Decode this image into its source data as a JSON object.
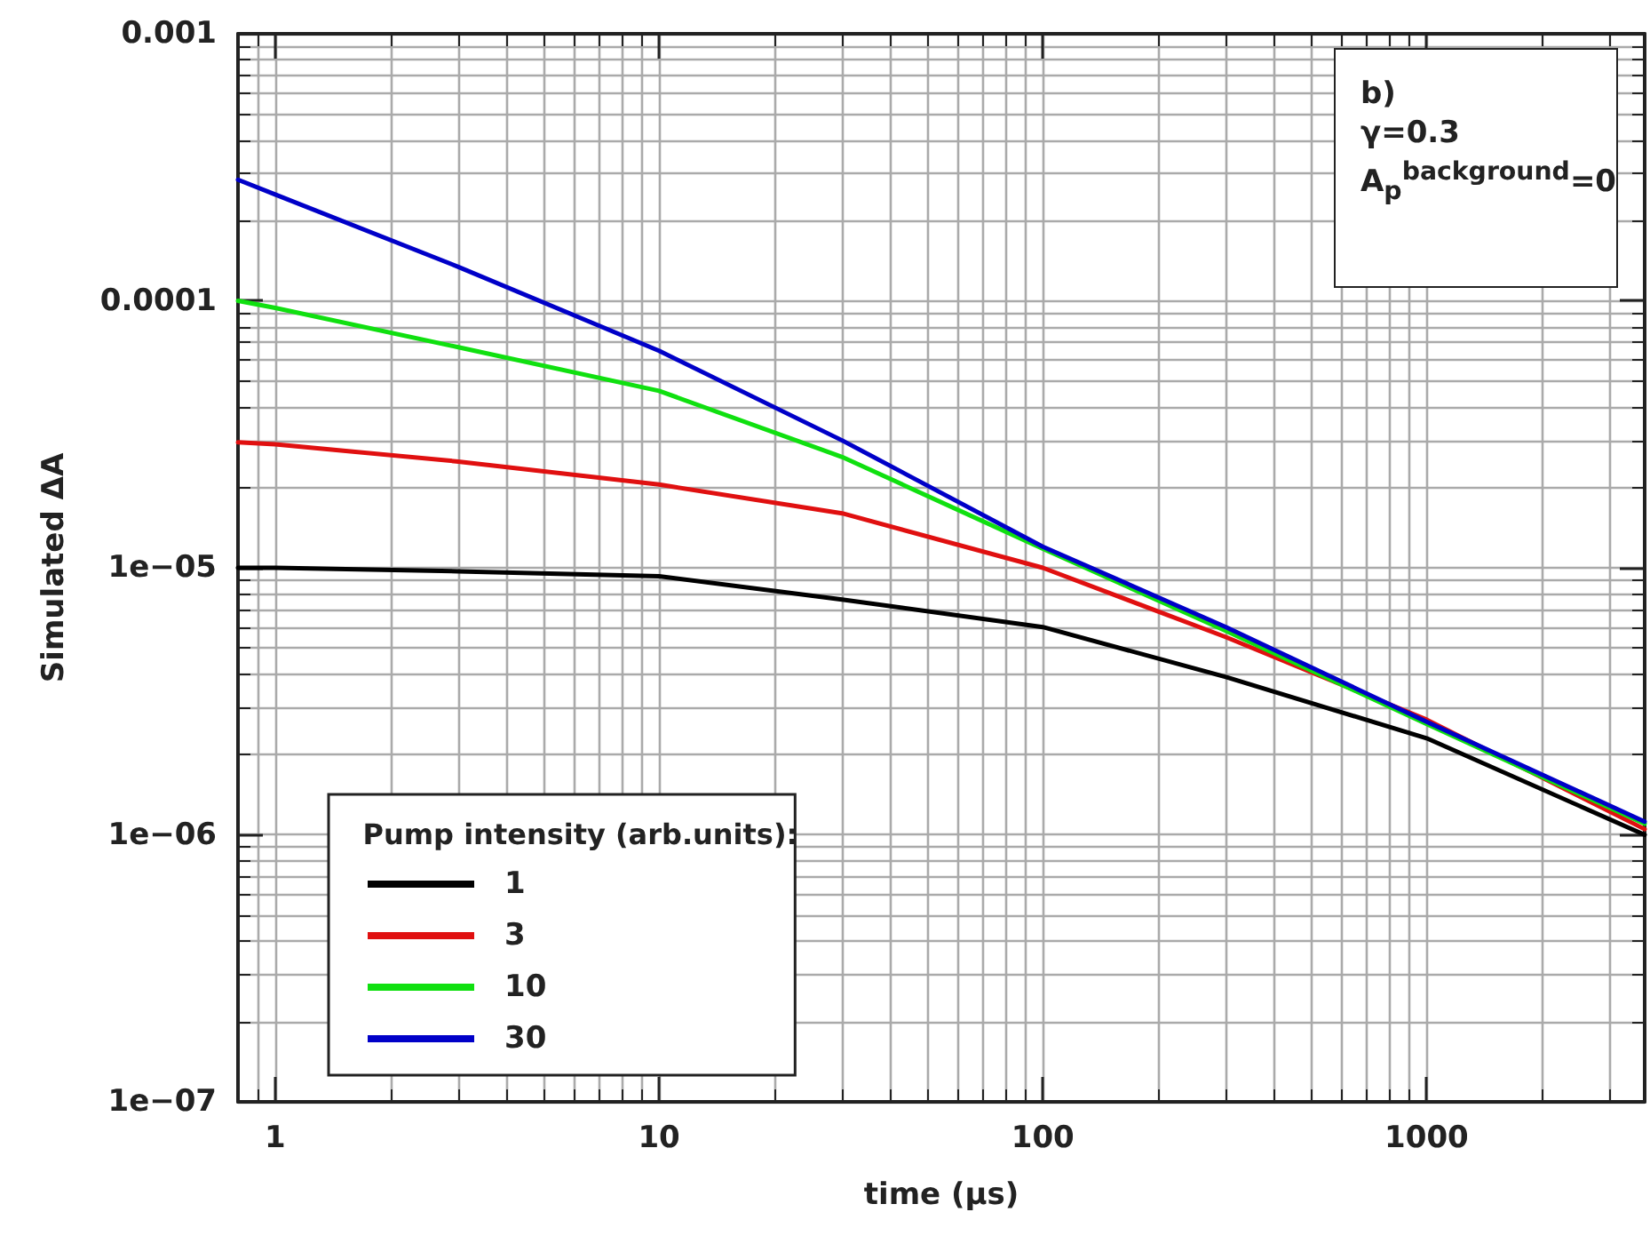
{
  "chart_data": {
    "type": "line",
    "xlabel": "time (µs)",
    "ylabel": "Simulated ΔA",
    "legend_title": "Pump intensity (arb.units):",
    "annotations": [
      "b)",
      "γ=0.3",
      "A$_{p}$$^{background}$=0"
    ],
    "x": [
      0.8,
      1,
      3,
      10,
      30,
      100,
      300,
      1000,
      3700
    ],
    "series": [
      {
        "name": "1",
        "color": "#000000",
        "values": [
          1e-05,
          1e-05,
          9.7e-06,
          9.3e-06,
          7.6e-06,
          6e-06,
          3.9e-06,
          2.3e-06,
          1e-06
        ]
      },
      {
        "name": "3",
        "color": "#e01010",
        "values": [
          2.95e-05,
          2.9e-05,
          2.5e-05,
          2.05e-05,
          1.6e-05,
          1e-05,
          5.5e-06,
          2.7e-06,
          1.05e-06
        ]
      },
      {
        "name": "10",
        "color": "#10e010",
        "values": [
          0.0001,
          9.4e-05,
          6.7e-05,
          4.6e-05,
          2.6e-05,
          1.18e-05,
          5.8e-06,
          2.6e-06,
          1.1e-06
        ]
      },
      {
        "name": "30",
        "color": "#0000c8",
        "values": [
          0.000284,
          0.00025,
          0.000134,
          6.5e-05,
          3e-05,
          1.2e-05,
          6e-06,
          2.65e-06,
          1.12e-06
        ]
      }
    ],
    "log": "xy",
    "xlim": [
      0.8,
      3700
    ],
    "ylim": [
      1e-07,
      0.001
    ],
    "xticks": [
      1,
      10,
      100,
      1000
    ],
    "yticks": [
      {
        "value": 1e-07,
        "label": "1e−07"
      },
      {
        "value": 1e-06,
        "label": "1e−06"
      },
      {
        "value": 1e-05,
        "label": "1e−05"
      },
      0.0001,
      0.001
    ],
    "grid": true,
    "legend": "bottom left",
    "marker": "none",
    "line_style": "solid"
  }
}
